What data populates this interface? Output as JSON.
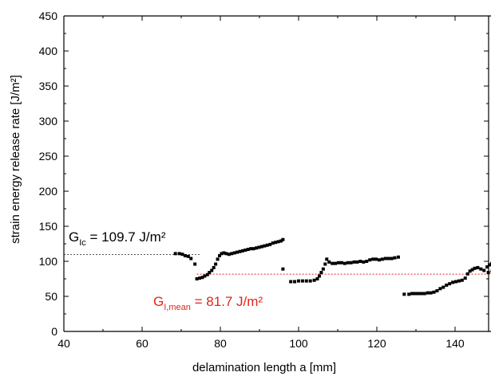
{
  "chart_data": {
    "type": "scatter",
    "title": "",
    "xlabel": "delamination length a [mm]",
    "ylabel": "strain energy release rate [J/m²]",
    "xlim": [
      40,
      150
    ],
    "ylim": [
      0,
      450
    ],
    "xticks": [
      40,
      60,
      80,
      100,
      120,
      140
    ],
    "yticks": [
      0,
      50,
      100,
      150,
      200,
      250,
      300,
      350,
      400,
      450
    ],
    "grid": false,
    "colors": {
      "points": "#000000",
      "glc_line": "#555555",
      "mean_line": "#e0241b",
      "mean_text": "#e0241b",
      "axis": "#000000"
    },
    "series": [
      {
        "points": [
          [
            68.5,
            111
          ],
          [
            69.5,
            111
          ],
          [
            70.3,
            110
          ],
          [
            71,
            108
          ],
          [
            71.8,
            107
          ],
          [
            72.5,
            104
          ],
          [
            73.5,
            96
          ],
          [
            74.0,
            75
          ],
          [
            74.7,
            76
          ],
          [
            75.4,
            77
          ],
          [
            76.0,
            79
          ],
          [
            76.7,
            81
          ],
          [
            77.2,
            84
          ],
          [
            77.8,
            87
          ],
          [
            78.3,
            91
          ],
          [
            78.8,
            96
          ],
          [
            79.3,
            103
          ],
          [
            79.8,
            108
          ],
          [
            80.3,
            111
          ],
          [
            80.9,
            112
          ],
          [
            81.5,
            111
          ],
          [
            82.2,
            110
          ],
          [
            82.9,
            111
          ],
          [
            83.6,
            112
          ],
          [
            84.3,
            113
          ],
          [
            85.0,
            114
          ],
          [
            85.7,
            115
          ],
          [
            86.4,
            116
          ],
          [
            87.1,
            117
          ],
          [
            87.8,
            118
          ],
          [
            88.5,
            118
          ],
          [
            89.2,
            119
          ],
          [
            89.9,
            120
          ],
          [
            90.6,
            121
          ],
          [
            91.3,
            122
          ],
          [
            92.0,
            123
          ],
          [
            92.7,
            124
          ],
          [
            93.4,
            126
          ],
          [
            94.1,
            127
          ],
          [
            94.8,
            128
          ],
          [
            95.5,
            129
          ],
          [
            96.0,
            131
          ],
          [
            96.0,
            89
          ],
          [
            98.0,
            71
          ],
          [
            99.0,
            71
          ],
          [
            100.0,
            72
          ],
          [
            101.0,
            72
          ],
          [
            102.0,
            72
          ],
          [
            103.0,
            72
          ],
          [
            104.0,
            73
          ],
          [
            104.8,
            75
          ],
          [
            105.3,
            79
          ],
          [
            105.8,
            84
          ],
          [
            106.3,
            89
          ],
          [
            106.8,
            96
          ],
          [
            107.2,
            103
          ],
          [
            107.8,
            99
          ],
          [
            108.6,
            97
          ],
          [
            109.4,
            97
          ],
          [
            110.2,
            98
          ],
          [
            111.0,
            98
          ],
          [
            111.8,
            97
          ],
          [
            112.6,
            98
          ],
          [
            113.4,
            98
          ],
          [
            114.2,
            99
          ],
          [
            115.0,
            99
          ],
          [
            115.8,
            100
          ],
          [
            116.6,
            99
          ],
          [
            117.4,
            100
          ],
          [
            118.2,
            102
          ],
          [
            119.0,
            103
          ],
          [
            119.8,
            103
          ],
          [
            120.6,
            102
          ],
          [
            121.4,
            103
          ],
          [
            122.2,
            104
          ],
          [
            123.0,
            104
          ],
          [
            123.8,
            104
          ],
          [
            124.6,
            105
          ],
          [
            125.5,
            106
          ],
          [
            127.0,
            53
          ],
          [
            128.2,
            53
          ],
          [
            129.0,
            54
          ],
          [
            129.8,
            54
          ],
          [
            130.6,
            54
          ],
          [
            131.4,
            54
          ],
          [
            132.2,
            54
          ],
          [
            133.0,
            55
          ],
          [
            133.8,
            55
          ],
          [
            134.6,
            56
          ],
          [
            135.4,
            58
          ],
          [
            136.2,
            61
          ],
          [
            137.0,
            63
          ],
          [
            137.8,
            66
          ],
          [
            138.6,
            68
          ],
          [
            139.4,
            70
          ],
          [
            140.2,
            71
          ],
          [
            141.0,
            72
          ],
          [
            141.8,
            73
          ],
          [
            142.6,
            76
          ],
          [
            143.2,
            82
          ],
          [
            143.8,
            86
          ],
          [
            144.4,
            88
          ],
          [
            145.0,
            90
          ],
          [
            145.8,
            91
          ],
          [
            146.6,
            89
          ],
          [
            147.4,
            87
          ],
          [
            148.2,
            92
          ],
          [
            148.8,
            95
          ],
          [
            149.4,
            97
          ],
          [
            150.0,
            96
          ],
          [
            148.5,
            84
          ],
          [
            149.5,
            86
          ],
          [
            150.0,
            88
          ]
        ]
      }
    ],
    "reference_lines": [
      {
        "name": "G_Ic",
        "value": 109.7,
        "x_range": [
          40,
          75
        ],
        "style": "dashed"
      },
      {
        "name": "G_I,mean",
        "value": 81.7,
        "x_range": [
          74,
          150
        ],
        "style": "dashed"
      }
    ],
    "annotations": {
      "glc": {
        "main": "G",
        "sub": "Ic",
        "rest": " = 109.7 J/m²"
      },
      "mean": {
        "main": "G",
        "sub": "I,mean",
        "rest": " = 81.7 J/m²"
      }
    }
  }
}
